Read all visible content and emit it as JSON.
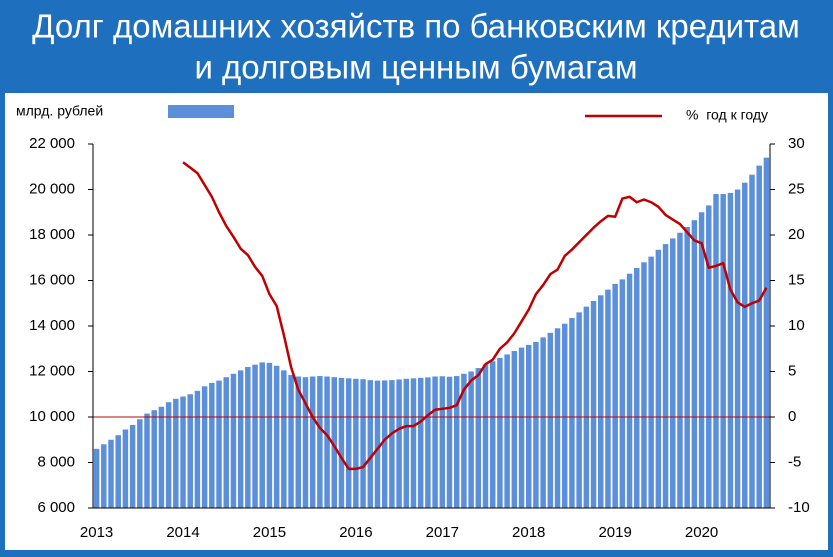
{
  "chart_data": {
    "type": "bar_line",
    "title": [
      "Долг домашних хозяйств по банковским кредитам",
      "и долговым ценным бумагам"
    ],
    "categories": [
      "2013",
      null,
      null,
      null,
      null,
      null,
      null,
      null,
      null,
      null,
      null,
      null,
      "2014",
      null,
      null,
      null,
      null,
      null,
      null,
      null,
      null,
      null,
      null,
      null,
      "2015",
      null,
      null,
      null,
      null,
      null,
      null,
      null,
      null,
      null,
      null,
      null,
      "2016",
      null,
      null,
      null,
      null,
      null,
      null,
      null,
      null,
      null,
      null,
      null,
      "2017",
      null,
      null,
      null,
      null,
      null,
      null,
      null,
      null,
      null,
      null,
      null,
      "2018",
      null,
      null,
      null,
      null,
      null,
      null,
      null,
      null,
      null,
      null,
      null,
      "2019",
      null,
      null,
      null,
      null,
      null,
      null,
      null,
      null,
      null,
      null,
      null,
      "2020",
      null,
      null,
      null,
      null,
      null,
      null,
      null,
      null,
      null
    ],
    "series": [
      {
        "name": "млрд. рублей",
        "type": "bar",
        "color": "#5b8fd9",
        "values": [
          8600,
          8800,
          9000,
          9200,
          9450,
          9650,
          9900,
          10150,
          10300,
          10450,
          10650,
          10800,
          10900,
          11000,
          11150,
          11350,
          11500,
          11600,
          11750,
          11900,
          12050,
          12200,
          12300,
          12400,
          12380,
          12250,
          12050,
          11850,
          11780,
          11750,
          11780,
          11800,
          11780,
          11750,
          11720,
          11700,
          11680,
          11660,
          11620,
          11600,
          11610,
          11620,
          11650,
          11680,
          11700,
          11720,
          11740,
          11780,
          11790,
          11770,
          11800,
          11900,
          12000,
          12150,
          12300,
          12450,
          12600,
          12750,
          12900,
          13050,
          13170,
          13300,
          13500,
          13700,
          13900,
          14100,
          14350,
          14600,
          14850,
          15100,
          15350,
          15600,
          15850,
          16050,
          16300,
          16550,
          16800,
          17050,
          17350,
          17600,
          17850,
          18100,
          18350,
          18650,
          19000,
          19300,
          19800,
          19800,
          19850,
          20000,
          20300,
          20650,
          21050,
          21400
        ]
      },
      {
        "name": "%  год к году",
        "type": "line",
        "axis": "y2",
        "color": "#c00000",
        "values": [
          null,
          null,
          null,
          null,
          null,
          null,
          null,
          null,
          null,
          null,
          null,
          null,
          28,
          27.4,
          26.8,
          25.5,
          24.2,
          22.5,
          21,
          19.8,
          18.5,
          17.8,
          16.5,
          15.5,
          13.5,
          12.2,
          9,
          5.5,
          3,
          1.5,
          0,
          -1.2,
          -2,
          -3.2,
          -4.5,
          -5.7,
          -5.7,
          -5.5,
          -4.5,
          -3.5,
          -2.5,
          -1.8,
          -1.3,
          -1,
          -1,
          -0.5,
          0.2,
          0.8,
          0.9,
          1,
          1.3,
          3,
          4,
          4.6,
          5.8,
          6.3,
          7.5,
          8.2,
          9.2,
          10.5,
          11.8,
          13.5,
          14.5,
          15.7,
          16.2,
          17.7,
          18.4,
          19.2,
          20,
          20.8,
          21.5,
          22.1,
          22,
          24,
          24.2,
          23.6,
          23.9,
          23.6,
          23.1,
          22.2,
          21.7,
          21.2,
          20.3,
          19.4,
          19.1,
          16.4,
          16.6,
          16.9,
          14,
          12.6,
          12.1,
          12.5,
          12.8,
          14.2
        ]
      }
    ],
    "ylim": [
      6000,
      22000
    ],
    "yticks": [
      {
        "value": 6000,
        "label": "6 000"
      },
      {
        "value": 8000,
        "label": "8 000"
      },
      {
        "value": 10000,
        "label": "10 000"
      },
      {
        "value": 12000,
        "label": "12 000"
      },
      {
        "value": 14000,
        "label": "14 000"
      },
      {
        "value": 16000,
        "label": "16 000"
      },
      {
        "value": 18000,
        "label": "18 000"
      },
      {
        "value": 20000,
        "label": "20 000"
      },
      {
        "value": 22000,
        "label": "22 000"
      }
    ],
    "y2lim": [
      -10,
      30
    ],
    "y2ticks": [
      -10,
      -5,
      0,
      5,
      10,
      15,
      20,
      25,
      30
    ],
    "grid": false
  }
}
